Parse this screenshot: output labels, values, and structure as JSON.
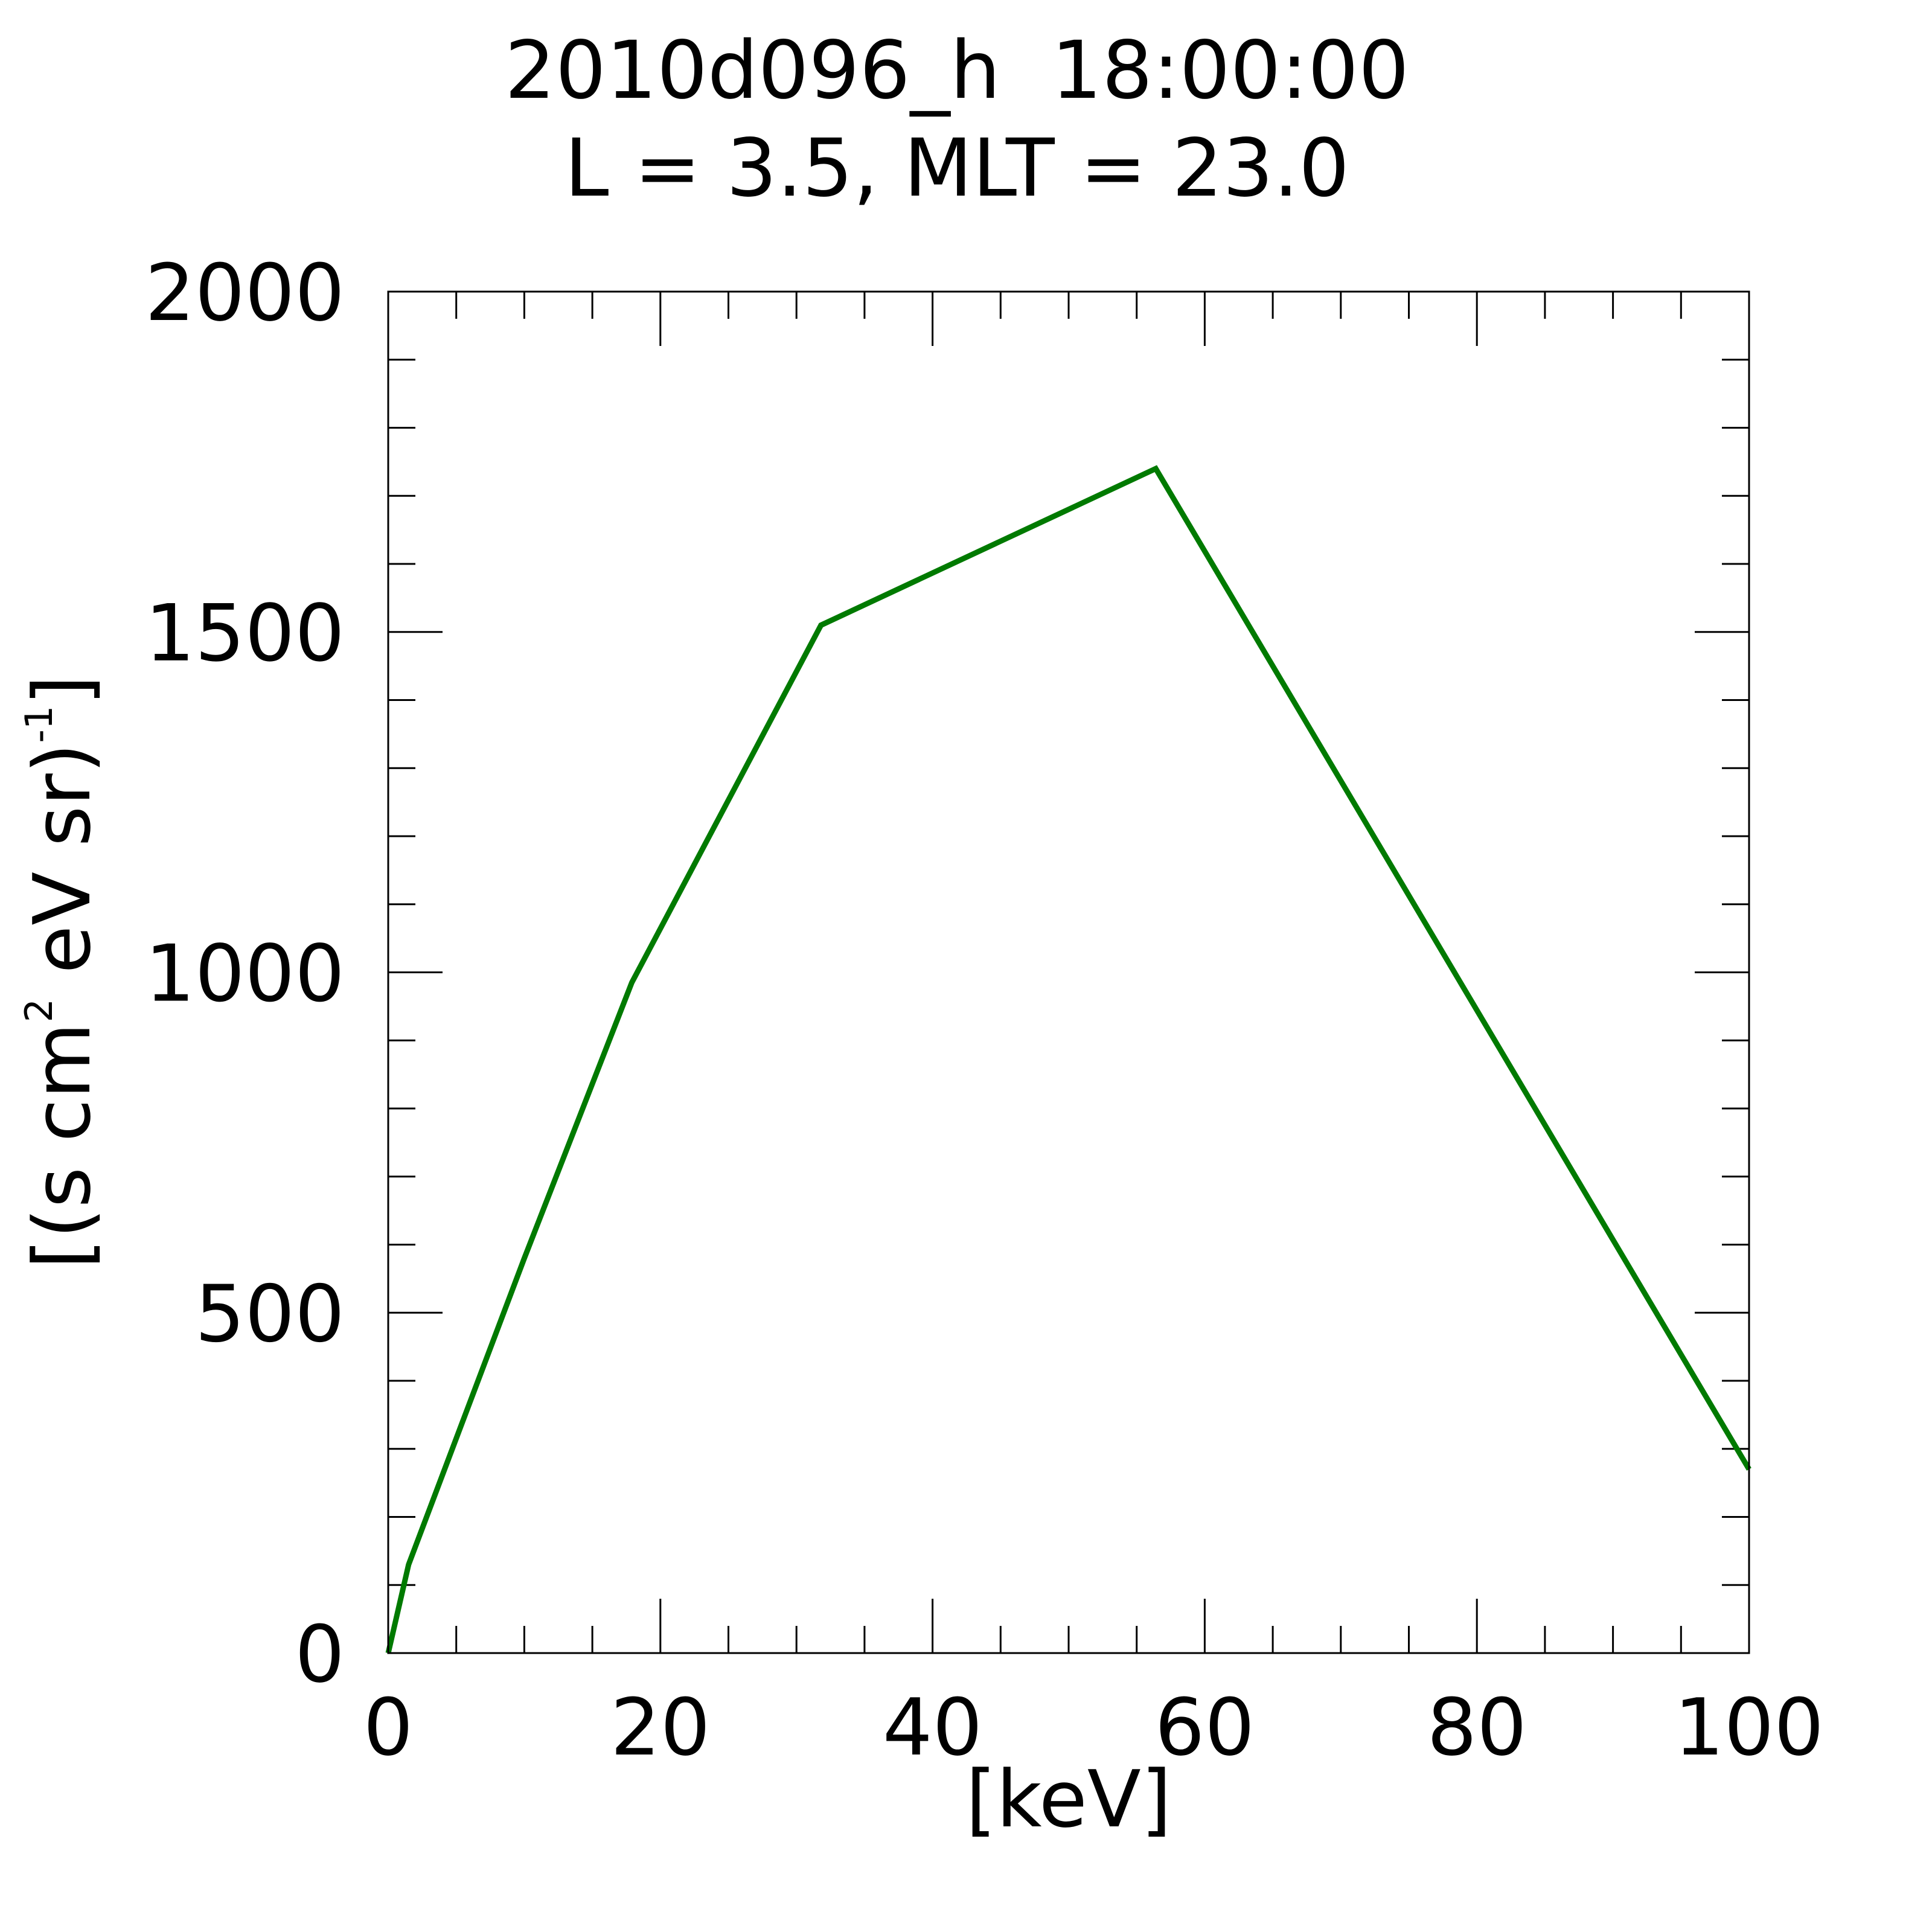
{
  "chart_data": {
    "type": "line",
    "title": "2010d096_h  18:00:00",
    "subtitle": "L = 3.5, MLT = 23.0",
    "xlabel": "[keV]",
    "ylabel": {
      "open": "[(s cm",
      "sup1": "2",
      "mid": " eV sr)",
      "sup2": "-1",
      "close": "]"
    },
    "xlim": [
      0,
      100
    ],
    "ylim": [
      0,
      2000
    ],
    "x_ticks": [
      "0",
      "20",
      "40",
      "60",
      "80",
      "100"
    ],
    "y_ticks": [
      "0",
      "500",
      "1000",
      "1500",
      "2000"
    ],
    "x_minor_step": 5,
    "y_minor_step": 100,
    "grid": false,
    "series": [
      {
        "color": "#007a00",
        "x": [
          0,
          1.5,
          10,
          17.9,
          31.8,
          56.4,
          100
        ],
        "y": [
          0,
          130,
          580,
          985,
          1510,
          1740,
          270
        ]
      }
    ]
  }
}
